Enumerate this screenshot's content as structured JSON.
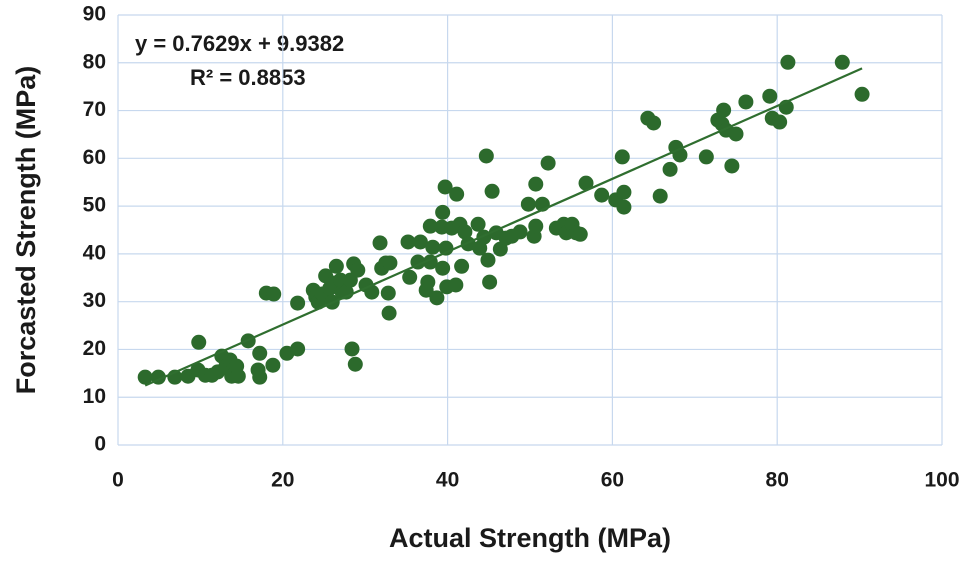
{
  "chart_data": {
    "type": "scatter",
    "x_label": "Actual  Strength (MPa)",
    "y_label": "Forcasted Strength (MPa)",
    "annotations": [
      "y = 0.7629x + 9.9382",
      "R² = 0.8853"
    ],
    "trendline": {
      "slope": 0.7629,
      "intercept": 9.9382,
      "x_range": [
        3.3,
        90.3
      ],
      "color": "#2f6e2f"
    },
    "color": "#2c6a2c",
    "grid": true,
    "xlim": [
      0,
      100
    ],
    "xticks": [
      0,
      20,
      40,
      60,
      80,
      100
    ],
    "ylim": [
      0,
      90
    ],
    "yticks": [
      0,
      10,
      20,
      30,
      40,
      50,
      60,
      70,
      80,
      90
    ],
    "x": [
      3.3,
      4.9,
      6.9,
      8.5,
      9.7,
      9.8,
      10.6,
      11.4,
      12.1,
      12.6,
      13.1,
      13.6,
      13.8,
      14.4,
      14.6,
      15.8,
      17,
      17.2,
      17.2,
      18,
      18.9,
      18.8,
      20.5,
      21.8,
      21.8,
      23.7,
      24,
      24.3,
      24.8,
      25.2,
      25.7,
      26,
      26.2,
      26.5,
      27,
      27.2,
      27.7,
      28.2,
      28.4,
      28.8,
      28.6,
      29.1,
      30.1,
      30.8,
      31.8,
      32,
      32.5,
      32.9,
      32.8,
      33,
      35.2,
      35.4,
      36.4,
      36.7,
      37.4,
      37.6,
      37.9,
      37.9,
      38.2,
      38.7,
      39.3,
      39.4,
      39.4,
      39.7,
      39.8,
      39.9,
      40.5,
      41.1,
      41,
      41.5,
      41.7,
      42.1,
      42.5,
      43.7,
      43.9,
      44.4,
      44.7,
      44.9,
      45.1,
      45.4,
      45.9,
      46.4,
      47.1,
      47.8,
      48.8,
      49.8,
      50.5,
      50.7,
      50.7,
      51.5,
      52.2,
      53.2,
      54.1,
      54.4,
      55.1,
      55.6,
      56.1,
      56.8,
      58.7,
      60.4,
      61.2,
      61.4,
      61.4,
      64.3,
      65,
      65.8,
      67,
      67.7,
      68.2,
      71.4,
      72.8,
      73.3,
      73.5,
      73.8,
      74.5,
      75,
      76.2,
      79.1,
      79.4,
      80.3,
      81.1,
      81.3,
      87.9,
      90.3
    ],
    "values": [
      14.2,
      14.2,
      14.2,
      14.4,
      15.7,
      21.5,
      14.6,
      14.6,
      15.3,
      18.6,
      16.5,
      17.8,
      14.4,
      16.5,
      14.4,
      21.8,
      15.7,
      14.2,
      19.2,
      31.8,
      31.6,
      16.7,
      19.2,
      20.1,
      29.7,
      32.4,
      31,
      29.9,
      31.6,
      35.4,
      32.8,
      29.9,
      33.9,
      37.4,
      34.5,
      32,
      32,
      34.5,
      20.1,
      16.9,
      37.9,
      36.6,
      33.5,
      32,
      42.3,
      37,
      38.1,
      27.6,
      31.8,
      38.1,
      42.5,
      35.1,
      38.3,
      42.5,
      32.4,
      34.1,
      38.3,
      45.8,
      41.4,
      30.8,
      45.6,
      37,
      48.7,
      54,
      41.2,
      33.1,
      45.4,
      52.5,
      33.5,
      46.2,
      37.4,
      44.6,
      42.1,
      46.2,
      41.2,
      43.5,
      60.5,
      38.7,
      34.1,
      53.1,
      44.4,
      41,
      43.3,
      43.7,
      44.6,
      50.4,
      43.7,
      45.8,
      54.6,
      50.4,
      59,
      45.4,
      46.2,
      44.4,
      46.2,
      44.4,
      44.1,
      54.8,
      52.3,
      51.3,
      60.3,
      52.9,
      49.8,
      68.4,
      67.4,
      52.1,
      57.7,
      62.3,
      60.7,
      60.3,
      68,
      67.2,
      70.1,
      65.9,
      58.4,
      65.1,
      71.8,
      73,
      68.4,
      67.6,
      70.7,
      80.1,
      80.1,
      73.4
    ]
  }
}
